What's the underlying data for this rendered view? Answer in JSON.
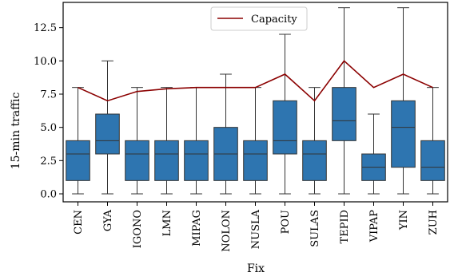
{
  "chart_data": {
    "type": "box",
    "xlabel": "Fix",
    "ylabel": "15-min traffic",
    "ylim": [
      -0.6,
      14.4
    ],
    "yticks": [
      0.0,
      2.5,
      5.0,
      7.5,
      10.0,
      12.5
    ],
    "ytick_labels": [
      "0.0",
      "2.5",
      "5.0",
      "7.5",
      "10.0",
      "12.5"
    ],
    "categories": [
      "CEN",
      "GYA",
      "IGONO",
      "LMN",
      "MIPAG",
      "NOLON",
      "NUSLA",
      "POU",
      "SULAS",
      "TEPID",
      "VIPAP",
      "YIN",
      "ZUH"
    ],
    "boxes": [
      {
        "min": 0,
        "q1": 1,
        "median": 3,
        "q3": 4,
        "max": 8
      },
      {
        "min": 0,
        "q1": 3,
        "median": 4,
        "q3": 6,
        "max": 10
      },
      {
        "min": 0,
        "q1": 1,
        "median": 3,
        "q3": 4,
        "max": 8
      },
      {
        "min": 0,
        "q1": 1,
        "median": 3,
        "q3": 4,
        "max": 8
      },
      {
        "min": 0,
        "q1": 1,
        "median": 3,
        "q3": 4,
        "max": 8
      },
      {
        "min": 0,
        "q1": 1,
        "median": 3,
        "q3": 5,
        "max": 9
      },
      {
        "min": 0,
        "q1": 1,
        "median": 3,
        "q3": 4,
        "max": 8
      },
      {
        "min": 0,
        "q1": 3,
        "median": 4,
        "q3": 7,
        "max": 12
      },
      {
        "min": 0,
        "q1": 1,
        "median": 3,
        "q3": 4,
        "max": 8
      },
      {
        "min": 0,
        "q1": 4,
        "median": 5.5,
        "q3": 8,
        "max": 14
      },
      {
        "min": 0,
        "q1": 1,
        "median": 2,
        "q3": 3,
        "max": 6
      },
      {
        "min": 0,
        "q1": 2,
        "median": 5,
        "q3": 7,
        "max": 14
      },
      {
        "min": 0,
        "q1": 1,
        "median": 2,
        "q3": 4,
        "max": 8
      }
    ],
    "line_series": {
      "name": "Capacity",
      "values": [
        8,
        7,
        7.7,
        7.9,
        8,
        8,
        8,
        9,
        7,
        10,
        8,
        9,
        8
      ]
    },
    "legend": "top-center",
    "grid": false
  },
  "colors": {
    "box_fill": "#2e75b0",
    "capacity_line": "#8b0000",
    "axis": "#000000"
  }
}
